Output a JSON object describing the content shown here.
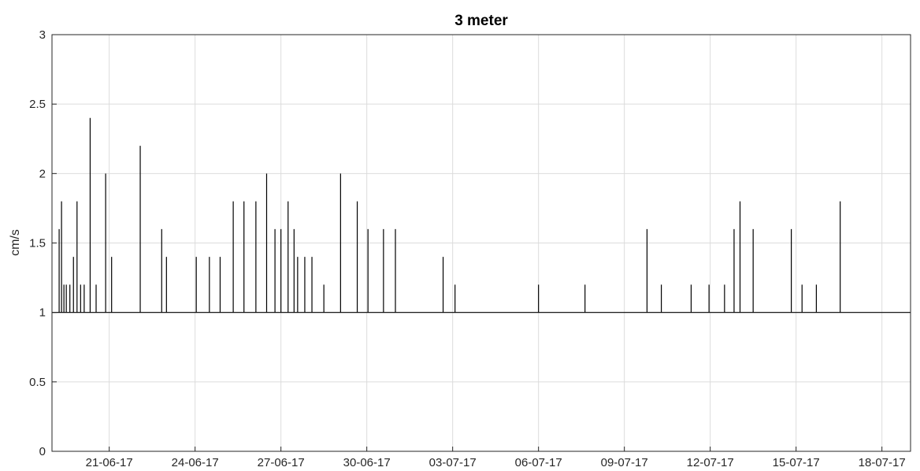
{
  "chart_data": {
    "type": "line",
    "title": "3 meter",
    "xlabel": "",
    "ylabel": "cm/s",
    "grid": true,
    "legend": "none",
    "line_color": "#000000",
    "grid_color": "#dcdcdc",
    "xlim": [
      "2017-06-19",
      "2017-07-19"
    ],
    "ylim": [
      0,
      3
    ],
    "yticks": [
      0,
      0.5,
      1,
      1.5,
      2,
      2.5,
      3
    ],
    "ytick_labels": [
      "0",
      "0.5",
      "1",
      "1.5",
      "2",
      "2.5",
      "3"
    ],
    "xticks": [
      "2017-06-21",
      "2017-06-24",
      "2017-06-27",
      "2017-06-30",
      "2017-07-03",
      "2017-07-06",
      "2017-07-09",
      "2017-07-12",
      "2017-07-15",
      "2017-07-18"
    ],
    "xtick_labels": [
      "21-06-17",
      "24-06-17",
      "27-06-17",
      "30-06-17",
      "03-07-17",
      "06-07-17",
      "09-07-17",
      "12-07-17",
      "15-07-17",
      "18-07-17"
    ],
    "baseline": 1,
    "series": [
      {
        "x": [
          "2017-06-19 06:00",
          "2017-06-19 08:00",
          "2017-06-19 10:00",
          "2017-06-19 12:00",
          "2017-06-19 15:00",
          "2017-06-19 18:00",
          "2017-06-19 21:00",
          "2017-06-20 00:00",
          "2017-06-20 03:00",
          "2017-06-20 08:00",
          "2017-06-20 13:00",
          "2017-06-20 21:00",
          "2017-06-21 02:00",
          "2017-06-22 02:00",
          "2017-06-22 20:00",
          "2017-06-23 00:00",
          "2017-06-24 01:00",
          "2017-06-24 12:00",
          "2017-06-24 21:00",
          "2017-06-25 08:00",
          "2017-06-25 17:00",
          "2017-06-26 03:00",
          "2017-06-26 12:00",
          "2017-06-26 19:00",
          "2017-06-27 00:00",
          "2017-06-27 06:00",
          "2017-06-27 11:00",
          "2017-06-27 14:00",
          "2017-06-27 20:00",
          "2017-06-28 02:00",
          "2017-06-28 12:00",
          "2017-06-29 02:00",
          "2017-06-29 16:00",
          "2017-06-30 01:00",
          "2017-06-30 14:00",
          "2017-07-01 00:00",
          "2017-07-02 16:00",
          "2017-07-03 02:00",
          "2017-07-06 00:00",
          "2017-07-07 15:00",
          "2017-07-09 19:00",
          "2017-07-10 07:00",
          "2017-07-11 08:00",
          "2017-07-11 23:00",
          "2017-07-12 12:00",
          "2017-07-12 20:00",
          "2017-07-13 01:00",
          "2017-07-13 12:00",
          "2017-07-14 20:00",
          "2017-07-15 05:00",
          "2017-07-15 17:00",
          "2017-07-16 13:00"
        ],
        "values": [
          1.6,
          1.8,
          1.2,
          1.2,
          1.2,
          1.4,
          1.8,
          1.2,
          1.2,
          2.4,
          1.2,
          2.0,
          1.4,
          2.2,
          1.6,
          1.4,
          1.4,
          1.4,
          1.4,
          1.8,
          1.8,
          1.8,
          2.0,
          1.6,
          1.6,
          1.8,
          1.6,
          1.4,
          1.4,
          1.4,
          1.2,
          2.0,
          1.8,
          1.6,
          1.6,
          1.6,
          1.4,
          1.2,
          1.2,
          1.2,
          1.6,
          1.2,
          1.2,
          1.2,
          1.2,
          1.6,
          1.8,
          1.6,
          1.6,
          1.2,
          1.2,
          1.8
        ]
      }
    ]
  }
}
